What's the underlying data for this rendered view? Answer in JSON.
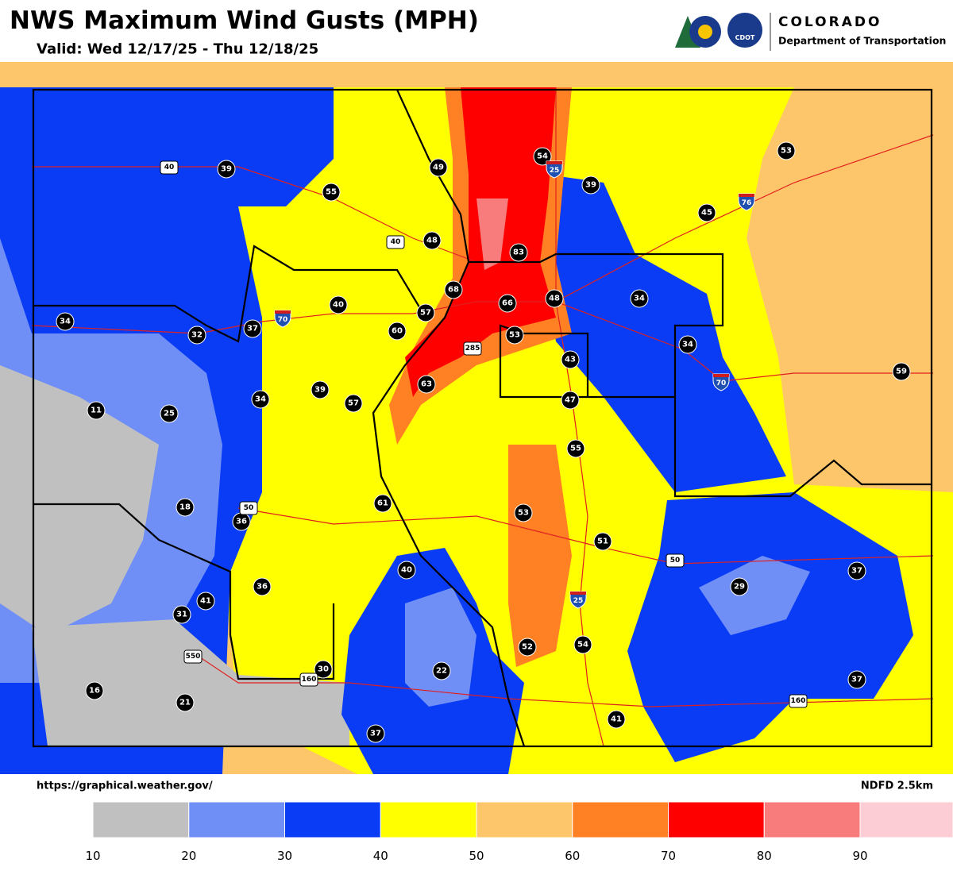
{
  "header": {
    "title": "NWS Maximum Wind Gusts (MPH)",
    "valid": "Valid: Wed 12/17/25 - Thu 12/18/25"
  },
  "logo": {
    "state": "COLORADO",
    "agency": "Department of Transportation",
    "badge": "CDOT"
  },
  "footer": {
    "source": "https://graphical.weather.gov/",
    "model": "NDFD 2.5km"
  },
  "legend": {
    "colors": [
      "#ffffff",
      "#c0c0c0",
      "#6f8ff7",
      "#0a3cf5",
      "#ffff00",
      "#fec66a",
      "#ff8124",
      "#ff0000",
      "#f87c7c",
      "#fdcdd6"
    ],
    "ticks": [
      10,
      20,
      30,
      40,
      50,
      60,
      70,
      80,
      90
    ]
  },
  "gusts": [
    39,
    55,
    49,
    54,
    39,
    53,
    45,
    48,
    83,
    68,
    66,
    48,
    34,
    40,
    57,
    37,
    32,
    34,
    60,
    53,
    34,
    43,
    59,
    63,
    39,
    34,
    57,
    47,
    11,
    25,
    55,
    18,
    61,
    36,
    53,
    51,
    40,
    37,
    29,
    36,
    41,
    31,
    52,
    54,
    22,
    30,
    37,
    16,
    21,
    41,
    37
  ],
  "shields": [
    "25",
    "25",
    "76",
    "70",
    "70",
    "40",
    "40",
    "285",
    "50",
    "50",
    "550",
    "160",
    "160"
  ]
}
